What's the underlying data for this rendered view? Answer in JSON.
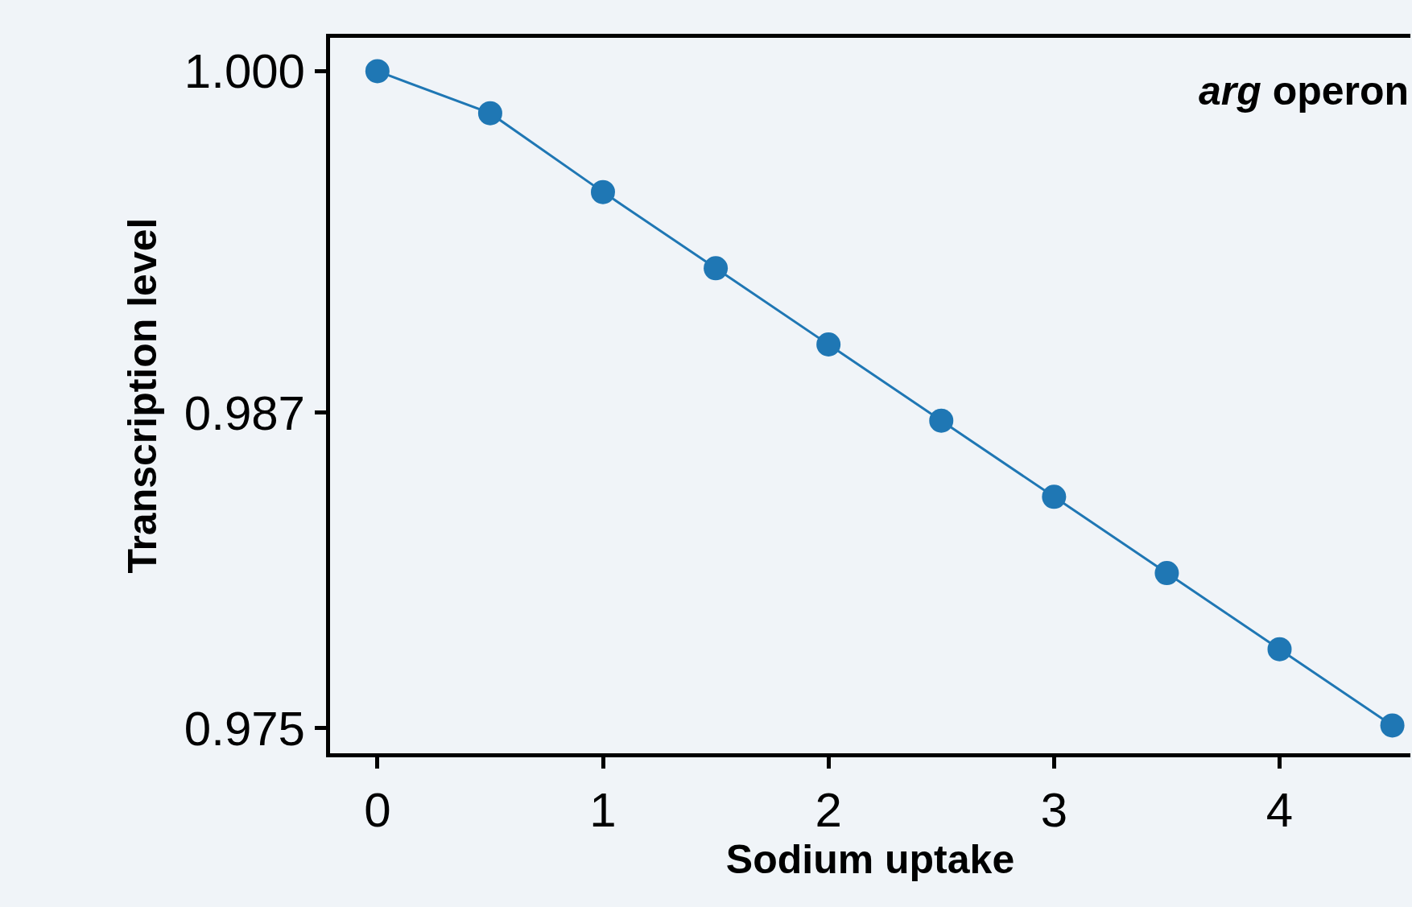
{
  "chart_data": {
    "type": "line",
    "xlabel": "Sodium uptake",
    "ylabel": "Transcription level",
    "x": [
      0,
      0.5,
      1,
      1.5,
      2,
      2.5,
      3,
      3.5,
      4,
      4.5
    ],
    "series": [
      {
        "color": "#1f77b4",
        "values": [
          1.0,
          0.9984,
          0.9954,
          0.9925,
          0.9896,
          0.9867,
          0.9838,
          0.9809,
          0.978,
          0.9751
        ]
      }
    ],
    "xlim": [
      -0.21,
      4.58
    ],
    "xticks": [
      0,
      1,
      2,
      3,
      4
    ],
    "ylim": [
      0.97404,
      1.00127
    ],
    "yticks": [
      {
        "value": 1.0,
        "label": "1.000"
      },
      0.987,
      0.975
    ],
    "marker": "circle",
    "line_style": "solid",
    "grid": false,
    "annotations": [
      "arg operon"
    ]
  }
}
